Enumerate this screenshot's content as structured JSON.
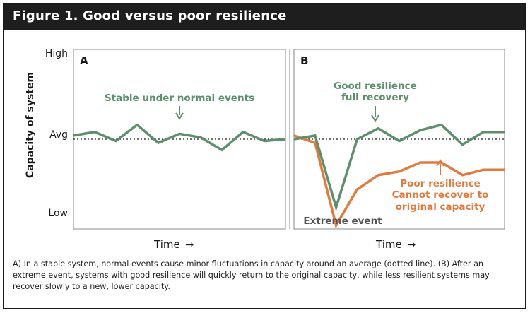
{
  "figure": {
    "title": "Figure 1. Good versus poor resilience",
    "caption": "A) In a stable system, normal events cause minor fluctuations in capacity around an average (dotted line). (B) After an extreme event, systems with good resilience will quickly return to the original capacity, while less resilient systems may recover slowly to a new, lower capacity."
  },
  "colors": {
    "good": "#5d8f6c",
    "poor": "#e07a3f",
    "title_bg": "#1e1e1e"
  },
  "chart_data": [
    {
      "type": "line",
      "panel": "A",
      "ylabel": "Capacity of system",
      "xlabel": "Time",
      "xlabel_arrow": "➞",
      "y_ticks": [
        "High",
        "Avg",
        "Low"
      ],
      "ylim": [
        0,
        10
      ],
      "avg_line": 5,
      "x": [
        0,
        1,
        2,
        3,
        4,
        5,
        6,
        7,
        8,
        9,
        10
      ],
      "series": [
        {
          "key": "stable",
          "values": [
            5.2,
            5.4,
            4.9,
            5.8,
            4.8,
            5.3,
            5.1,
            4.4,
            5.4,
            4.9,
            5.0
          ],
          "color": "#5d8f6c"
        }
      ],
      "annotations": [
        {
          "text": "Stable under normal events",
          "arrow": "down"
        }
      ]
    },
    {
      "type": "line",
      "panel": "B",
      "xlabel": "Time",
      "xlabel_arrow": "➞",
      "ylim": [
        0,
        10
      ],
      "avg_line": 5,
      "x": [
        0,
        1,
        2,
        3,
        4,
        5,
        6,
        7,
        8,
        9,
        10
      ],
      "series": [
        {
          "key": "good",
          "name": "Good resilience full recovery",
          "values": [
            5.0,
            5.2,
            1.2,
            5.0,
            5.6,
            4.9,
            5.5,
            5.8,
            4.7,
            5.4,
            5.4
          ],
          "color": "#5d8f6c"
        },
        {
          "key": "poor",
          "name": "Poor resilience Cannot recover to original capacity",
          "values": [
            5.2,
            4.8,
            0.2,
            2.2,
            3.0,
            3.2,
            3.7,
            3.7,
            3.0,
            3.3,
            3.3
          ],
          "color": "#e07a3f"
        }
      ],
      "annotations": [
        {
          "text": [
            "Good resilience",
            "full recovery"
          ],
          "arrow": "down",
          "color": "#5d8f6c"
        },
        {
          "text": [
            "Poor resilience",
            "Cannot recover to",
            "original capacity"
          ],
          "arrow": "up",
          "color": "#e07a3f"
        },
        {
          "text": "Extreme event",
          "color": "#555555"
        }
      ]
    }
  ]
}
